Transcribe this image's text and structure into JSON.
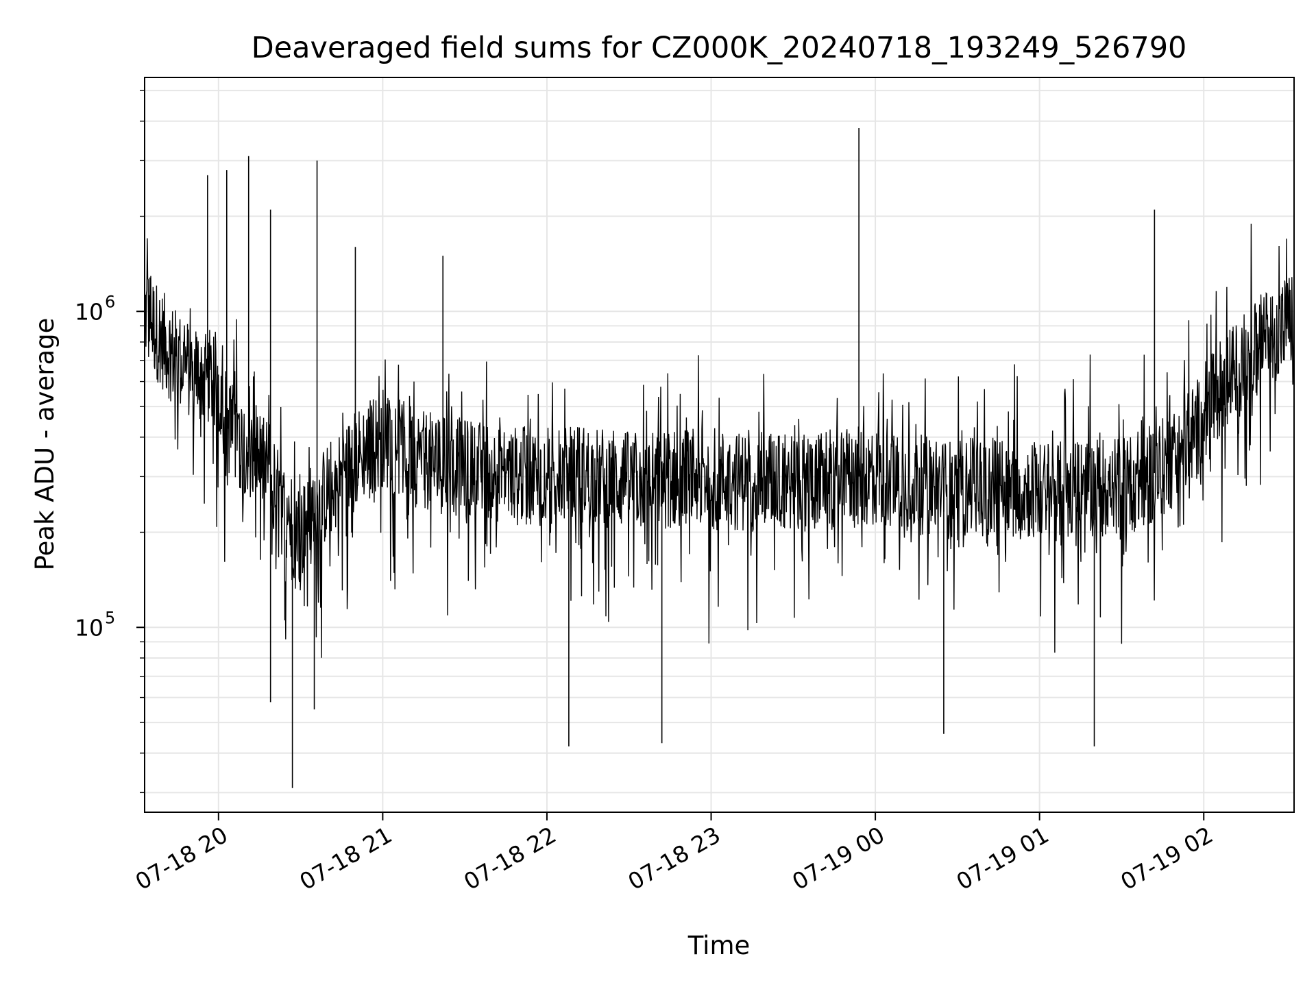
{
  "chart_data": {
    "type": "line",
    "title": "Deaveraged field sums for CZ000K_20240718_193249_526790",
    "xlabel": "Time",
    "ylabel": "Peak ADU - average",
    "yscale": "log",
    "ylim": [
      26000,
      5500000
    ],
    "xlim": [
      "2024-07-18 19:33",
      "2024-07-19 02:33"
    ],
    "grid": true,
    "x_ticks": [
      {
        "value": "2024-07-18 20:00",
        "label": "07-18 20"
      },
      {
        "value": "2024-07-18 21:00",
        "label": "07-18 21"
      },
      {
        "value": "2024-07-18 22:00",
        "label": "07-18 22"
      },
      {
        "value": "2024-07-18 23:00",
        "label": "07-18 23"
      },
      {
        "value": "2024-07-19 00:00",
        "label": "07-19 00"
      },
      {
        "value": "2024-07-19 01:00",
        "label": "07-19 01"
      },
      {
        "value": "2024-07-19 02:00",
        "label": "07-19 02"
      }
    ],
    "y_ticks": [
      {
        "value": 100000,
        "base": "10",
        "exp": "5"
      },
      {
        "value": 1000000,
        "base": "10",
        "exp": "6"
      }
    ],
    "series": [
      {
        "color": "#000000",
        "x": [
          "2024-07-18 19:33",
          "2024-07-18 19:40",
          "2024-07-18 19:45",
          "2024-07-18 19:50",
          "2024-07-18 19:55",
          "2024-07-18 20:00",
          "2024-07-18 20:03",
          "2024-07-18 20:06",
          "2024-07-18 20:10",
          "2024-07-18 20:15",
          "2024-07-18 20:20",
          "2024-07-18 20:25",
          "2024-07-18 20:30",
          "2024-07-18 20:35",
          "2024-07-18 20:40",
          "2024-07-18 20:45",
          "2024-07-18 20:50",
          "2024-07-18 21:00",
          "2024-07-18 21:10",
          "2024-07-18 21:20",
          "2024-07-18 21:30",
          "2024-07-18 21:40",
          "2024-07-18 21:50",
          "2024-07-18 22:00",
          "2024-07-18 22:10",
          "2024-07-18 22:20",
          "2024-07-18 22:30",
          "2024-07-18 22:40",
          "2024-07-18 22:50",
          "2024-07-18 23:00",
          "2024-07-18 23:10",
          "2024-07-18 23:20",
          "2024-07-18 23:30",
          "2024-07-18 23:40",
          "2024-07-18 23:50",
          "2024-07-19 00:00",
          "2024-07-19 00:10",
          "2024-07-19 00:20",
          "2024-07-19 00:30",
          "2024-07-19 00:40",
          "2024-07-19 00:50",
          "2024-07-19 01:00",
          "2024-07-19 01:10",
          "2024-07-19 01:20",
          "2024-07-19 01:30",
          "2024-07-19 01:40",
          "2024-07-19 01:45",
          "2024-07-19 01:50",
          "2024-07-19 01:55",
          "2024-07-19 02:00",
          "2024-07-19 02:05",
          "2024-07-19 02:10",
          "2024-07-19 02:15",
          "2024-07-19 02:20",
          "2024-07-19 02:25",
          "2024-07-19 02:33"
        ],
        "y": [
          1000000,
          800000,
          700000,
          650000,
          620000,
          600000,
          450000,
          400000,
          380000,
          340000,
          280000,
          220000,
          200000,
          230000,
          270000,
          300000,
          340000,
          400000,
          350000,
          330000,
          320000,
          310000,
          300000,
          300000,
          310000,
          300000,
          290000,
          290000,
          300000,
          300000,
          290000,
          290000,
          290000,
          290000,
          300000,
          300000,
          290000,
          280000,
          270000,
          280000,
          280000,
          270000,
          270000,
          280000,
          280000,
          300000,
          320000,
          350000,
          400000,
          450000,
          550000,
          620000,
          700000,
          780000,
          850000,
          950000
        ]
      }
    ],
    "spikes": [
      {
        "x": "2024-07-18 19:56",
        "y": 2700000
      },
      {
        "x": "2024-07-18 20:03",
        "y": 2800000
      },
      {
        "x": "2024-07-18 20:11",
        "y": 3100000
      },
      {
        "x": "2024-07-18 20:19",
        "y": 2100000
      },
      {
        "x": "2024-07-18 20:36",
        "y": 3000000
      },
      {
        "x": "2024-07-18 20:50",
        "y": 1600000
      },
      {
        "x": "2024-07-18 21:22",
        "y": 1500000
      },
      {
        "x": "2024-07-18 23:54",
        "y": 3800000
      },
      {
        "x": "2024-07-19 01:42",
        "y": 2100000
      },
      {
        "x": "2024-07-18 20:27",
        "y": 31000
      },
      {
        "x": "2024-07-18 22:08",
        "y": 42000
      },
      {
        "x": "2024-07-18 22:42",
        "y": 43000
      },
      {
        "x": "2024-07-19 01:20",
        "y": 42000
      },
      {
        "x": "2024-07-19 00:25",
        "y": 46000
      },
      {
        "x": "2024-07-18 20:19",
        "y": 58000
      },
      {
        "x": "2024-07-18 20:35",
        "y": 55000
      }
    ]
  }
}
